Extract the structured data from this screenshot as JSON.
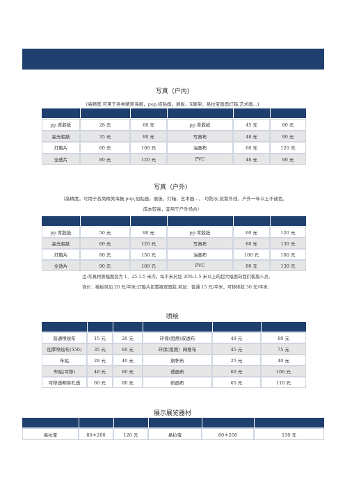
{
  "sections": [
    {
      "title": "写真（户内)",
      "subtitle": [
        "(高精度,可用于各类精美海报，pop,招贴画，展板，X展架，易拉宝画面灯箱,艺术画...)"
      ],
      "rows": [
        [
          "pp 背胶纸",
          "28 元",
          "60 元",
          "pp 背胶纸",
          "45 元",
          "80 元"
        ],
        [
          "高光相纸",
          "35 元",
          "80 元",
          "写真布",
          "48 元",
          "90 元"
        ],
        [
          "灯箱片",
          "60 元",
          "100 元",
          "油画布",
          "60 元",
          "120 元"
        ],
        [
          "全透片",
          "80 元",
          "120 元",
          "PVC",
          "48 元",
          "90 元"
        ]
      ]
    },
    {
      "title": "写真（户外）",
      "subtitle": [
        "（高精度，可用于各类精美海报,pop,招贴画，展板，灯箱，艺术画...，.可防水,抗紫外线，户外一年以上不褪色,",
        "成本较高，宜用于户外场合）"
      ],
      "rows": [
        [
          "pp 背胶纸",
          "50 元",
          "90 元",
          "pp 背胶纸",
          "60 元",
          "120 元"
        ],
        [
          "高光相纸",
          "60 元",
          "120 元",
          "写真布",
          "80 元",
          "130 元"
        ],
        [
          "灯箱片",
          "80 元",
          "150 元",
          "油画布",
          "100 元",
          "180 元"
        ],
        [
          "全透片",
          "90 元",
          "180 元",
          "PVC",
          "80 元",
          "130 元"
        ]
      ],
      "notes": [
        "注:写真材质幅面加为 1．25-1.5 米内，每平米另加 20%.1.5 米以上的超大幅面向我们客服人员．",
        "询价：裱板另加 20 元/平米;灯箱片如需裱双面胶,另加：普通 15 元/平米，可移移胶 30 元/平米."
      ]
    },
    {
      "title": "喷绘",
      "rows": [
        [
          "普通喷绘布",
          "15 元",
          "20 元",
          "环保(阻燃)双透布",
          "48 元",
          "80 元"
        ],
        [
          "加厚喷绘布(550)",
          "35 元",
          "60 元",
          "环保(阻燃）网格布",
          "45 元",
          "75 元"
        ],
        [
          "车贴",
          "28 元",
          "40 元",
          "旗帜布",
          "25 元",
          "40 元"
        ],
        [
          "车贴(可移)",
          "48 元",
          "80 元",
          "透画布",
          "60 元",
          "100 元"
        ],
        [
          "可移透明单孔透",
          "60 元",
          "80 元",
          "帆画布",
          "65 元",
          "110 元"
        ]
      ]
    },
    {
      "title": "展示展览器材",
      "rows": [
        [
          "易拉宝",
          "80＊200",
          "120 元",
          "易拉宝",
          "80＊200",
          "150 元"
        ]
      ]
    }
  ]
}
